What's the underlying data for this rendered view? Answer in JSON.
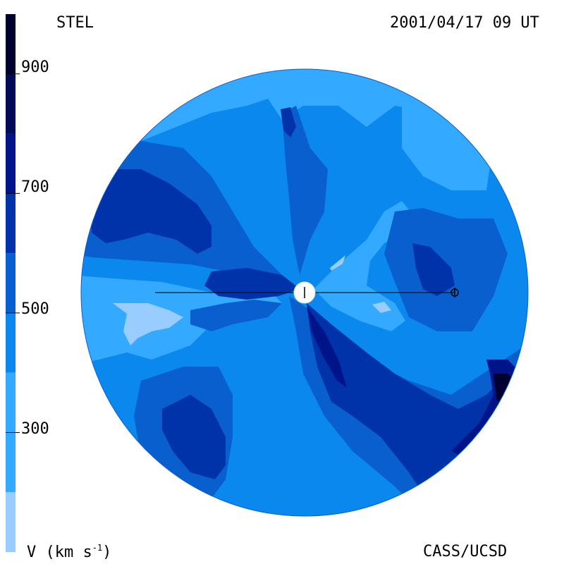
{
  "header": {
    "left_label": "STEL",
    "right_label": "2001/04/17 09 UT"
  },
  "footer": {
    "variable_label": "V (km s",
    "variable_exponent": "-1",
    "variable_suffix": ")",
    "credit": "CASS/UCSD"
  },
  "colorbar": {
    "ticks": [
      "900",
      "700",
      "500",
      "300"
    ],
    "tick_values": [
      900,
      700,
      500,
      300
    ],
    "range": [
      100,
      1000
    ],
    "bands": [
      {
        "from": 100,
        "to": 200,
        "color": "#99ccff"
      },
      {
        "from": 200,
        "to": 400,
        "color": "#33aaff"
      },
      {
        "from": 400,
        "to": 500,
        "color": "#0a88ee"
      },
      {
        "from": 500,
        "to": 600,
        "color": "#0a5fcf"
      },
      {
        "from": 600,
        "to": 700,
        "color": "#0033aa"
      },
      {
        "from": 700,
        "to": 800,
        "color": "#00148a"
      },
      {
        "from": 800,
        "to": 900,
        "color": "#000a55"
      },
      {
        "from": 900,
        "to": 1000,
        "color": "#000030"
      }
    ]
  },
  "map": {
    "background_color": "#0a88ee",
    "sun_marker": "sun",
    "earth_marker": "earth",
    "level_colors": {
      "v150": "#99ccff",
      "v300": "#33aaff",
      "v450": "#0a88ee",
      "v550": "#0a5fcf",
      "v650": "#0033aa",
      "v750": "#00148a",
      "v900": "#000030"
    }
  }
}
